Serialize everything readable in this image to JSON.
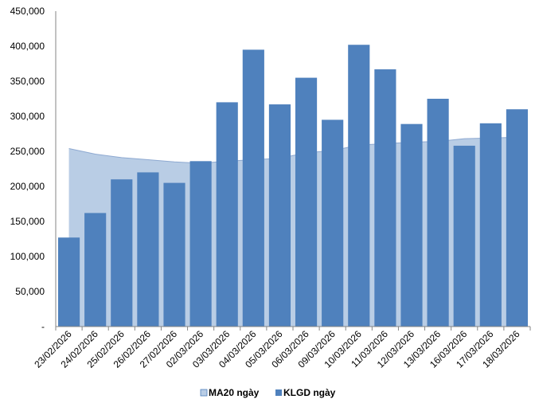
{
  "chart_data": {
    "type": "bar",
    "categories": [
      "23/02/2026",
      "24/02/2026",
      "25/02/2026",
      "26/02/2026",
      "27/02/2026",
      "02/03/2026",
      "03/03/2026",
      "04/03/2026",
      "05/03/2026",
      "06/03/2026",
      "09/03/2026",
      "10/03/2026",
      "11/03/2026",
      "12/03/2026",
      "13/03/2026",
      "16/03/2026",
      "17/03/2026",
      "18/03/2026"
    ],
    "series": [
      {
        "name": "KLGD ngày",
        "type": "bar",
        "color": "#4F81BD",
        "values": [
          127000,
          162000,
          210000,
          220000,
          205000,
          236000,
          320000,
          395000,
          317000,
          355000,
          295000,
          402000,
          367000,
          289000,
          325000,
          258000,
          290000,
          310000
        ]
      },
      {
        "name": "MA20 ngày",
        "type": "area",
        "color": "#B9CDE5",
        "values": [
          254000,
          246000,
          241000,
          238000,
          235000,
          233000,
          236000,
          238000,
          240000,
          248000,
          251000,
          259000,
          261000,
          263000,
          264000,
          268000,
          269000,
          270000
        ]
      }
    ],
    "y_ticks": [
      "-",
      "50,000",
      "100,000",
      "150,000",
      "200,000",
      "250,000",
      "300,000",
      "350,000",
      "400,000",
      "450,000"
    ],
    "ylim": [
      0,
      450000
    ],
    "grid": false,
    "legend_position": "bottom"
  }
}
